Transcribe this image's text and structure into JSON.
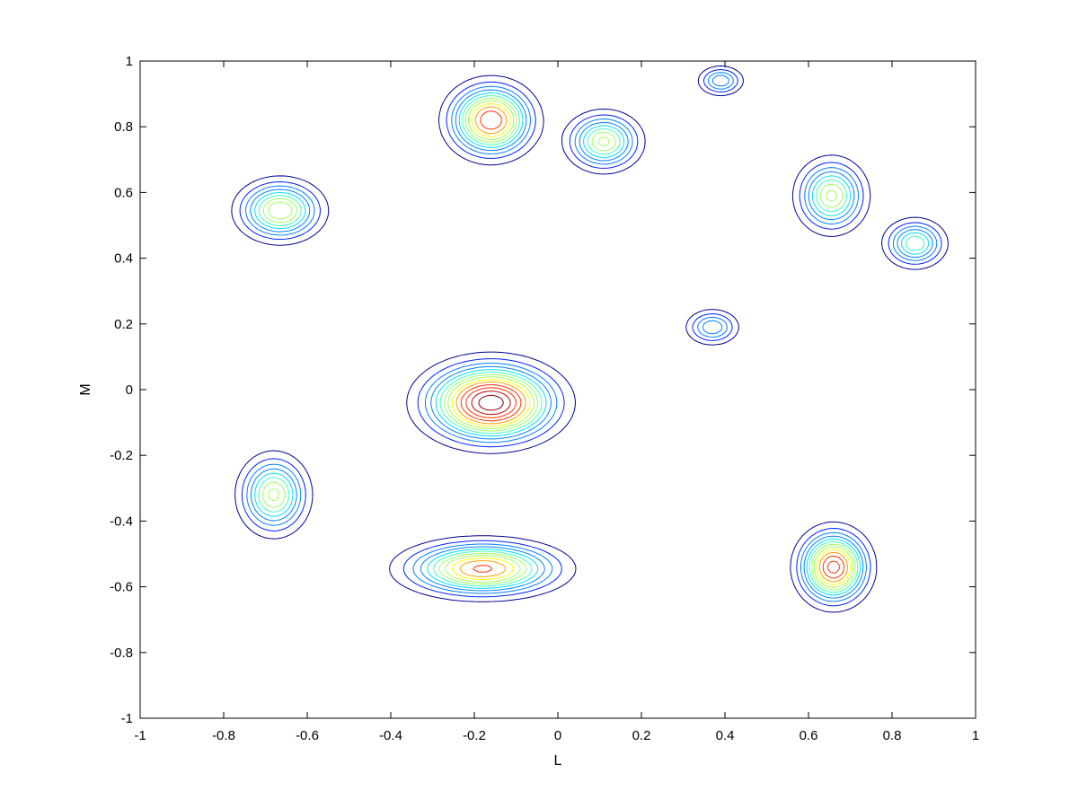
{
  "chart_data": {
    "type": "contour",
    "xlabel": "L",
    "ylabel": "M",
    "xlim": [
      -1,
      1
    ],
    "ylim": [
      -1,
      1
    ],
    "xticks": [
      -1,
      -0.8,
      -0.6,
      -0.4,
      -0.2,
      0,
      0.2,
      0.4,
      0.6,
      0.8,
      1
    ],
    "xtick_labels": [
      "-1",
      "-0.8",
      "-0.6",
      "-0.4",
      "-0.2",
      "0",
      "0.2",
      "0.4",
      "0.6",
      "0.8",
      "1"
    ],
    "yticks": [
      -1,
      -0.8,
      -0.6,
      -0.4,
      -0.2,
      0,
      0.2,
      0.4,
      0.6,
      0.8,
      1
    ],
    "ytick_labels": [
      "-1",
      "-0.8",
      "-0.6",
      "-0.4",
      "-0.2",
      "0",
      "0.2",
      "0.4",
      "0.6",
      "0.8",
      "1"
    ],
    "grid": false,
    "colormap": [
      "#00008f",
      "#0020ff",
      "#0080ff",
      "#00dfff",
      "#40ffbf",
      "#9fff60",
      "#ffff00",
      "#ffa000",
      "#ff3000",
      "#c00000",
      "#800000"
    ],
    "sources": [
      {
        "l": -0.665,
        "m": 0.545,
        "rl": 0.055,
        "rm": 0.05,
        "peak": 0.55
      },
      {
        "l": -0.68,
        "m": -0.32,
        "rl": 0.045,
        "rm": 0.065,
        "peak": 0.5
      },
      {
        "l": -0.16,
        "m": 0.82,
        "rl": 0.055,
        "rm": 0.06,
        "peak": 0.78
      },
      {
        "l": 0.11,
        "m": 0.755,
        "rl": 0.048,
        "rm": 0.048,
        "peak": 0.5
      },
      {
        "l": 0.39,
        "m": 0.94,
        "rl": 0.03,
        "rm": 0.025,
        "peak": 0.3
      },
      {
        "l": 0.655,
        "m": 0.59,
        "rl": 0.045,
        "rm": 0.06,
        "peak": 0.5
      },
      {
        "l": 0.855,
        "m": 0.445,
        "rl": 0.04,
        "rm": 0.04,
        "peak": 0.42
      },
      {
        "l": 0.37,
        "m": 0.19,
        "rl": 0.035,
        "rm": 0.03,
        "peak": 0.3
      },
      {
        "l": -0.16,
        "m": -0.04,
        "rl": 0.085,
        "rm": 0.065,
        "peak": 1.0
      },
      {
        "l": -0.18,
        "m": -0.545,
        "rl": 0.1,
        "rm": 0.045,
        "peak": 0.72
      },
      {
        "l": 0.66,
        "m": -0.54,
        "rl": 0.045,
        "rm": 0.06,
        "peak": 0.82
      }
    ],
    "levels": [
      0.06,
      0.12,
      0.18,
      0.24,
      0.3,
      0.36,
      0.42,
      0.48,
      0.55,
      0.62,
      0.7,
      0.78,
      0.86,
      0.94
    ]
  }
}
